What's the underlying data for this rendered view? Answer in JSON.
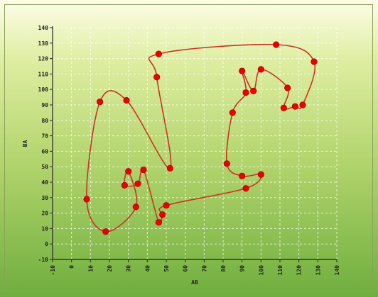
{
  "chart_data": {
    "type": "scatter",
    "title": "",
    "xlabel": "AB",
    "ylabel": "BA",
    "xlim": [
      -10,
      140
    ],
    "ylim": [
      -10,
      140
    ],
    "x_ticks": [
      -10,
      0,
      10,
      20,
      30,
      40,
      50,
      60,
      70,
      80,
      90,
      100,
      110,
      120,
      130,
      140
    ],
    "y_ticks": [
      -10,
      0,
      10,
      20,
      30,
      40,
      50,
      60,
      70,
      80,
      90,
      100,
      110,
      120,
      130,
      140
    ],
    "grid": true,
    "colors": {
      "line": "#cc3322",
      "point": "#ee0000",
      "grid": "#ffffff",
      "axis": "#222222"
    },
    "series": [
      {
        "points": [
          [
            46,
            123
          ],
          [
            108,
            129
          ],
          [
            128,
            118
          ],
          [
            122,
            90
          ],
          [
            118,
            89
          ],
          [
            112,
            88
          ],
          [
            114,
            101
          ],
          [
            100,
            113
          ],
          [
            96,
            99
          ],
          [
            90,
            112
          ],
          [
            92,
            98
          ],
          [
            85,
            85
          ],
          [
            82,
            52
          ],
          [
            90,
            44
          ],
          [
            100,
            45
          ],
          [
            92,
            36
          ],
          [
            50,
            25
          ],
          [
            48,
            19
          ],
          [
            46,
            14
          ],
          [
            38,
            48
          ],
          [
            35,
            39
          ],
          [
            28,
            38
          ],
          [
            30,
            47
          ],
          [
            34,
            24
          ],
          [
            18,
            8
          ],
          [
            8,
            29
          ],
          [
            15,
            92
          ],
          [
            29,
            93
          ],
          [
            52,
            49
          ],
          [
            45,
            108
          ]
        ]
      }
    ]
  }
}
